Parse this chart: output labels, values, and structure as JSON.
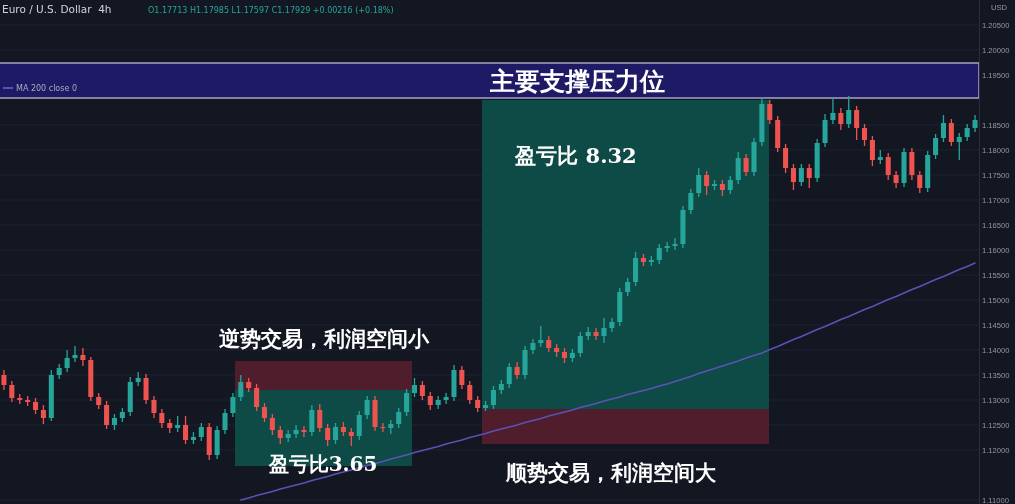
{
  "chart_data": {
    "type": "candlestick",
    "title": "Euro / U.S. Dollar  4h",
    "subtitle": "O1.17713 H1.17985 L1.17597 C1.17929 +0.00216 (+0.18%)",
    "ylabel": "USD",
    "categories": [
      null,
      null,
      null,
      null,
      null,
      null,
      null,
      null,
      null,
      null,
      null,
      null,
      null,
      null,
      null,
      null,
      null,
      null,
      null,
      null,
      null,
      null,
      null,
      null,
      null,
      null,
      null,
      null,
      null,
      null,
      null,
      null,
      null,
      null,
      null,
      null,
      null,
      null,
      null,
      null,
      null,
      null,
      null,
      null,
      null,
      null,
      null,
      null,
      null,
      null,
      null,
      null,
      null,
      null,
      null,
      null,
      null,
      null,
      null,
      null,
      null,
      null,
      null,
      null,
      null,
      null,
      null,
      null,
      null,
      null,
      null,
      null,
      null,
      null,
      null,
      null,
      null,
      null,
      null,
      null,
      null,
      null,
      null,
      null,
      null,
      null,
      null,
      null,
      null,
      null,
      null,
      null,
      null,
      null,
      null,
      null,
      null,
      null,
      null,
      null,
      null,
      null,
      null,
      null,
      null,
      null,
      null,
      null,
      null,
      null,
      null,
      null,
      null,
      null,
      null,
      null,
      null,
      null,
      null,
      null,
      null,
      null,
      null,
      null
    ],
    "ohlc": [
      [
        1.135,
        1.136,
        1.132,
        1.133
      ],
      [
        1.133,
        1.1338,
        1.1296,
        1.1304
      ],
      [
        1.1304,
        1.1312,
        1.1292,
        1.13
      ],
      [
        1.13,
        1.1308,
        1.1288,
        1.1296
      ],
      [
        1.1296,
        1.1304,
        1.1272,
        1.128
      ],
      [
        1.128,
        1.129,
        1.1252,
        1.1264
      ],
      [
        1.1264,
        1.136,
        1.1258,
        1.135
      ],
      [
        1.135,
        1.1372,
        1.1342,
        1.1364
      ],
      [
        1.1364,
        1.14,
        1.1356,
        1.1384
      ],
      [
        1.1384,
        1.1408,
        1.1376,
        1.139
      ],
      [
        1.139,
        1.1404,
        1.1368,
        1.138
      ],
      [
        1.138,
        1.1386,
        1.1298,
        1.1306
      ],
      [
        1.1306,
        1.1314,
        1.1282,
        1.129
      ],
      [
        1.129,
        1.1298,
        1.1242,
        1.125
      ],
      [
        1.125,
        1.1272,
        1.124,
        1.1264
      ],
      [
        1.1264,
        1.1284,
        1.1256,
        1.1276
      ],
      [
        1.1276,
        1.1346,
        1.1268,
        1.1336
      ],
      [
        1.1336,
        1.1356,
        1.1328,
        1.1344
      ],
      [
        1.1344,
        1.1352,
        1.1292,
        1.13
      ],
      [
        1.13,
        1.1308,
        1.1264,
        1.1274
      ],
      [
        1.1274,
        1.1282,
        1.1244,
        1.1254
      ],
      [
        1.1254,
        1.1262,
        1.1234,
        1.1244
      ],
      [
        1.1244,
        1.1268,
        1.1236,
        1.125
      ],
      [
        1.125,
        1.1268,
        1.1212,
        1.122
      ],
      [
        1.122,
        1.1236,
        1.1212,
        1.1226
      ],
      [
        1.1226,
        1.1254,
        1.1218,
        1.1246
      ],
      [
        1.1246,
        1.1254,
        1.118,
        1.119
      ],
      [
        1.119,
        1.1248,
        1.1182,
        1.124
      ],
      [
        1.124,
        1.1282,
        1.1232,
        1.1274
      ],
      [
        1.1274,
        1.1314,
        1.1266,
        1.1306
      ],
      [
        1.1306,
        1.135,
        1.1298,
        1.1336
      ],
      [
        1.1336,
        1.1344,
        1.1316,
        1.1324
      ],
      [
        1.1324,
        1.1332,
        1.1278,
        1.1286
      ],
      [
        1.1286,
        1.1294,
        1.1256,
        1.1264
      ],
      [
        1.1264,
        1.1272,
        1.123,
        1.124
      ],
      [
        1.124,
        1.1248,
        1.1212,
        1.1224
      ],
      [
        1.1224,
        1.124,
        1.1216,
        1.1232
      ],
      [
        1.1232,
        1.125,
        1.1224,
        1.124
      ],
      [
        1.124,
        1.1248,
        1.1226,
        1.1236
      ],
      [
        1.1236,
        1.129,
        1.1228,
        1.128
      ],
      [
        1.128,
        1.1292,
        1.1236,
        1.1244
      ],
      [
        1.1244,
        1.1252,
        1.1208,
        1.122
      ],
      [
        1.122,
        1.1254,
        1.1212,
        1.1246
      ],
      [
        1.1246,
        1.1256,
        1.1228,
        1.1236
      ],
      [
        1.1236,
        1.1244,
        1.1208,
        1.1228
      ],
      [
        1.1228,
        1.1278,
        1.122,
        1.127
      ],
      [
        1.127,
        1.1308,
        1.1262,
        1.13
      ],
      [
        1.13,
        1.1308,
        1.1238,
        1.1246
      ],
      [
        1.1246,
        1.1254,
        1.1236,
        1.1244
      ],
      [
        1.1244,
        1.126,
        1.1232,
        1.1252
      ],
      [
        1.1252,
        1.1284,
        1.1244,
        1.1276
      ],
      [
        1.1276,
        1.1322,
        1.1268,
        1.1314
      ],
      [
        1.1314,
        1.1344,
        1.1306,
        1.133
      ],
      [
        1.133,
        1.1338,
        1.13,
        1.1308
      ],
      [
        1.1308,
        1.1316,
        1.128,
        1.129
      ],
      [
        1.129,
        1.1308,
        1.1282,
        1.13
      ],
      [
        1.13,
        1.1314,
        1.1292,
        1.1306
      ],
      [
        1.1306,
        1.137,
        1.1298,
        1.136
      ],
      [
        1.136,
        1.1368,
        1.1322,
        1.133
      ],
      [
        1.133,
        1.1338,
        1.1292,
        1.13
      ],
      [
        1.13,
        1.1308,
        1.1276,
        1.1284
      ],
      [
        1.1284,
        1.1298,
        1.1278,
        1.129
      ],
      [
        1.129,
        1.1328,
        1.1282,
        1.132
      ],
      [
        1.132,
        1.134,
        1.1312,
        1.1332
      ],
      [
        1.1332,
        1.1374,
        1.1324,
        1.1366
      ],
      [
        1.1366,
        1.1376,
        1.1342,
        1.135
      ],
      [
        1.135,
        1.1408,
        1.1342,
        1.14
      ],
      [
        1.14,
        1.1422,
        1.1392,
        1.1414
      ],
      [
        1.1414,
        1.1448,
        1.1406,
        1.142
      ],
      [
        1.142,
        1.1428,
        1.1396,
        1.1404
      ],
      [
        1.1404,
        1.1412,
        1.1386,
        1.1396
      ],
      [
        1.1396,
        1.1404,
        1.1374,
        1.1384
      ],
      [
        1.1384,
        1.1402,
        1.1376,
        1.1394
      ],
      [
        1.1394,
        1.1436,
        1.1386,
        1.1428
      ],
      [
        1.1428,
        1.1446,
        1.142,
        1.1436
      ],
      [
        1.1436,
        1.1444,
        1.142,
        1.1428
      ],
      [
        1.1428,
        1.1464,
        1.1414,
        1.1444
      ],
      [
        1.1444,
        1.1464,
        1.1436,
        1.1456
      ],
      [
        1.1456,
        1.1524,
        1.1448,
        1.1516
      ],
      [
        1.1516,
        1.1544,
        1.1508,
        1.1536
      ],
      [
        1.1536,
        1.1596,
        1.1528,
        1.1584
      ],
      [
        1.1584,
        1.1592,
        1.1568,
        1.1576
      ],
      [
        1.1576,
        1.1588,
        1.1568,
        1.158
      ],
      [
        1.158,
        1.1612,
        1.1572,
        1.1604
      ],
      [
        1.1604,
        1.1616,
        1.1596,
        1.1608
      ],
      [
        1.1608,
        1.1624,
        1.16,
        1.1612
      ],
      [
        1.1612,
        1.1688,
        1.1604,
        1.168
      ],
      [
        1.168,
        1.1722,
        1.1672,
        1.1714
      ],
      [
        1.1714,
        1.1764,
        1.1706,
        1.175
      ],
      [
        1.175,
        1.1758,
        1.171,
        1.1728
      ],
      [
        1.1728,
        1.174,
        1.172,
        1.1732
      ],
      [
        1.1732,
        1.174,
        1.1708,
        1.172
      ],
      [
        1.172,
        1.1748,
        1.1712,
        1.174
      ],
      [
        1.174,
        1.1796,
        1.1732,
        1.1784
      ],
      [
        1.1784,
        1.1792,
        1.1748,
        1.1756
      ],
      [
        1.1756,
        1.1824,
        1.1748,
        1.1816
      ],
      [
        1.1816,
        1.1906,
        1.1808,
        1.1892
      ],
      [
        1.1892,
        1.19,
        1.1852,
        1.186
      ],
      [
        1.186,
        1.1868,
        1.1796,
        1.1804
      ],
      [
        1.1804,
        1.1812,
        1.1754,
        1.1764
      ],
      [
        1.1764,
        1.1772,
        1.172,
        1.1736
      ],
      [
        1.1736,
        1.1772,
        1.1728,
        1.1764
      ],
      [
        1.1764,
        1.1772,
        1.1724,
        1.1744
      ],
      [
        1.1744,
        1.1822,
        1.1736,
        1.1814
      ],
      [
        1.1814,
        1.1872,
        1.1806,
        1.186
      ],
      [
        1.186,
        1.1904,
        1.1852,
        1.1874
      ],
      [
        1.1874,
        1.1884,
        1.184,
        1.1852
      ],
      [
        1.1852,
        1.1908,
        1.1844,
        1.188
      ],
      [
        1.188,
        1.1888,
        1.182,
        1.1844
      ],
      [
        1.1844,
        1.1852,
        1.1808,
        1.182
      ],
      [
        1.182,
        1.1828,
        1.1768,
        1.178
      ],
      [
        1.178,
        1.18,
        1.1772,
        1.1786
      ],
      [
        1.1786,
        1.1794,
        1.174,
        1.175
      ],
      [
        1.175,
        1.1758,
        1.1724,
        1.1734
      ],
      [
        1.1734,
        1.1804,
        1.1726,
        1.1796
      ],
      [
        1.1796,
        1.1804,
        1.174,
        1.175
      ],
      [
        1.175,
        1.1758,
        1.1714,
        1.1724
      ],
      [
        1.1724,
        1.1798,
        1.1716,
        1.179
      ],
      [
        1.179,
        1.1832,
        1.1782,
        1.1824
      ],
      [
        1.1824,
        1.187,
        1.1816,
        1.1854
      ],
      [
        1.1854,
        1.1862,
        1.1808,
        1.1816
      ],
      [
        1.1816,
        1.1834,
        1.178,
        1.1826
      ],
      [
        1.1826,
        1.1852,
        1.1818,
        1.1844
      ],
      [
        1.1844,
        1.187,
        1.1836,
        1.186
      ]
    ],
    "colors": [
      "#ef5350",
      "#ef5350",
      "#ef5350",
      "#ef5350",
      "#ef5350",
      "#ef5350",
      "#26a69a",
      "#26a69a",
      "#26a69a",
      "#26a69a",
      "#ef5350",
      "#ef5350",
      "#ef5350",
      "#ef5350",
      "#26a69a",
      "#26a69a",
      "#26a69a",
      "#26a69a",
      "#ef5350",
      "#ef5350",
      "#ef5350",
      "#ef5350",
      "#26a69a",
      "#ef5350",
      "#26a69a",
      "#26a69a",
      "#ef5350",
      "#26a69a",
      "#26a69a",
      "#26a69a",
      "#26a69a",
      "#ef5350",
      "#ef5350",
      "#ef5350",
      "#ef5350",
      "#ef5350",
      "#26a69a",
      "#26a69a",
      "#ef5350",
      "#26a69a",
      "#ef5350",
      "#ef5350",
      "#26a69a",
      "#ef5350",
      "#ef5350",
      "#26a69a",
      "#26a69a",
      "#ef5350",
      "#ef5350",
      "#26a69a",
      "#26a69a",
      "#26a69a",
      "#26a69a",
      "#ef5350",
      "#ef5350",
      "#26a69a",
      "#26a69a",
      "#26a69a",
      "#ef5350",
      "#ef5350",
      "#ef5350",
      "#26a69a",
      "#26a69a",
      "#26a69a",
      "#26a69a",
      "#ef5350",
      "#26a69a",
      "#26a69a",
      "#26a69a",
      "#ef5350",
      "#ef5350",
      "#ef5350",
      "#26a69a",
      "#26a69a",
      "#26a69a",
      "#ef5350",
      "#26a69a",
      "#26a69a",
      "#26a69a",
      "#26a69a",
      "#26a69a",
      "#ef5350",
      "#26a69a",
      "#26a69a",
      "#26a69a",
      "#26a69a",
      "#26a69a",
      "#26a69a",
      "#26a69a",
      "#ef5350",
      "#26a69a",
      "#ef5350",
      "#26a69a",
      "#26a69a",
      "#ef5350",
      "#26a69a",
      "#26a69a",
      "#ef5350",
      "#ef5350",
      "#ef5350",
      "#ef5350",
      "#26a69a",
      "#ef5350",
      "#26a69a",
      "#26a69a",
      "#26a69a",
      "#ef5350",
      "#26a69a",
      "#ef5350",
      "#ef5350",
      "#ef5350",
      "#26a69a",
      "#ef5350",
      "#ef5350",
      "#26a69a",
      "#ef5350",
      "#ef5350",
      "#26a69a",
      "#26a69a",
      "#26a69a",
      "#ef5350",
      "#26a69a",
      "#26a69a",
      "#26a69a"
    ],
    "series": [
      {
        "type": "line",
        "name": "MA 200 close 0",
        "color": "#5b52b6",
        "values": [
          null,
          null,
          null,
          null,
          null,
          null,
          null,
          null,
          null,
          null,
          null,
          null,
          null,
          null,
          null,
          null,
          null,
          null,
          null,
          null,
          null,
          null,
          null,
          null,
          null,
          null,
          null,
          null,
          null,
          null,
          1.11,
          1.1104,
          1.1109,
          1.1113,
          1.1117,
          1.1122,
          1.1126,
          1.113,
          1.1134,
          1.1139,
          1.1143,
          1.1147,
          1.1152,
          1.1156,
          1.116,
          1.1165,
          1.1169,
          1.1173,
          1.1177,
          1.1182,
          1.1186,
          1.119,
          1.1195,
          1.1199,
          1.1203,
          1.1207,
          1.1212,
          1.1216,
          1.122,
          1.1225,
          1.1229,
          1.1233,
          1.1238,
          1.1242,
          1.1246,
          1.125,
          1.1255,
          1.1259,
          1.1263,
          1.1268,
          1.1272,
          1.1276,
          1.128,
          1.1285,
          1.1289,
          1.1293,
          1.1298,
          1.1302,
          1.1306,
          1.1311,
          1.1315,
          1.1319,
          1.1323,
          1.1328,
          1.1332,
          1.1337,
          1.1342,
          1.1347,
          1.1353,
          1.1358,
          1.1363,
          1.1368,
          1.1373,
          1.1378,
          1.1384,
          1.1389,
          1.1394,
          1.1401,
          1.1407,
          1.1414,
          1.1421,
          1.1427,
          1.1434,
          1.1441,
          1.1447,
          1.1454,
          1.1461,
          1.1467,
          1.1474,
          1.1481,
          1.1487,
          1.1494,
          1.1501,
          1.1507,
          1.1514,
          1.1521,
          1.1527,
          1.1534,
          1.1541,
          1.1547,
          1.1554,
          1.1561,
          1.1567,
          1.1574
        ]
      }
    ],
    "ylim": [
      1.1092,
      1.21
    ],
    "yticks": [
      {
        "value": 1.11,
        "label": "1.11000"
      },
      {
        "value": 1.12,
        "label": "1.12000"
      },
      {
        "value": 1.125,
        "label": "1.12500"
      },
      {
        "value": 1.13,
        "label": "1.13000"
      },
      {
        "value": 1.135,
        "label": "1.13500"
      },
      {
        "value": 1.14,
        "label": "1.14000"
      },
      {
        "value": 1.145,
        "label": "1.14500"
      },
      {
        "value": 1.15,
        "label": "1.15000"
      },
      {
        "value": 1.155,
        "label": "1.15500"
      },
      {
        "value": 1.16,
        "label": "1.16000"
      },
      {
        "value": 1.165,
        "label": "1.16500"
      },
      {
        "value": 1.17,
        "label": "1.17000"
      },
      {
        "value": 1.175,
        "label": "1.17500"
      },
      {
        "value": 1.18,
        "label": "1.18000"
      },
      {
        "value": 1.185,
        "label": "1.18500"
      },
      {
        "value": 1.195,
        "label": "1.19500"
      },
      {
        "value": 1.2,
        "label": "1.20000"
      },
      {
        "value": 1.205,
        "label": "1.20500"
      }
    ],
    "grid": "y",
    "legend": "top left",
    "bands": [
      {
        "axis": "y",
        "from": 1.1904,
        "to": 1.1974,
        "label": "主要支撑压力位",
        "color": "#1f1a66"
      }
    ],
    "annotations": [
      "逆势交易，利润空间小",
      "盈亏比3.65",
      "盈亏比 8.32",
      "顺势交易，利润空间大"
    ]
  }
}
